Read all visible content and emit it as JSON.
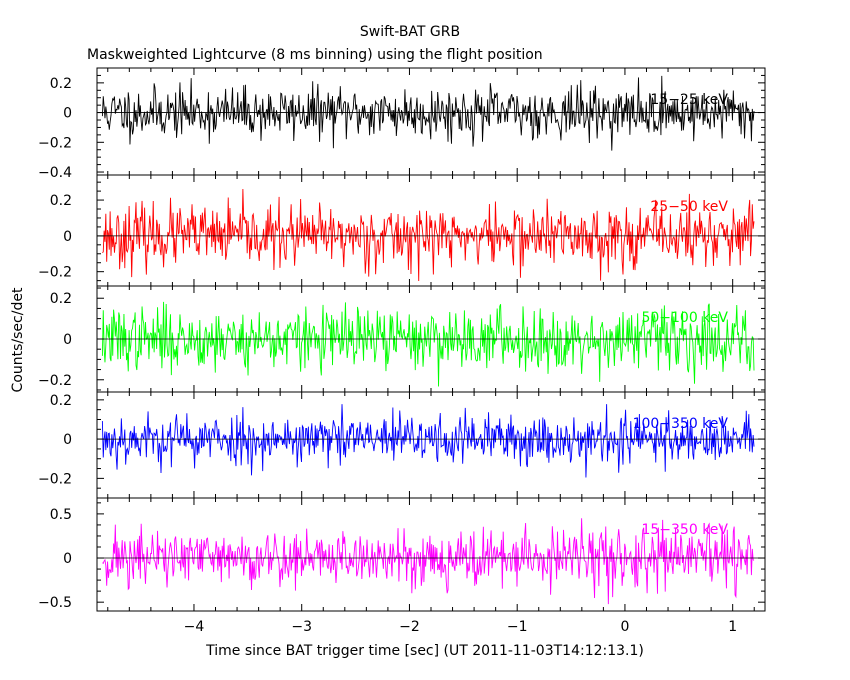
{
  "chart_data": {
    "type": "line",
    "title": "Swift-BAT GRB",
    "subtitle": "Maskweighted Lightcurve (8 ms binning) using the flight position",
    "xlabel": "Time since BAT trigger time [sec] (UT 2011-11-03T14:12:13.1)",
    "ylabel": "Counts/sec/det",
    "xlim": [
      -4.9,
      1.3
    ],
    "x_ticks": [
      {
        "value": -4,
        "label": "−4"
      },
      {
        "value": -3,
        "label": "−3"
      },
      {
        "value": -2,
        "label": "−2"
      },
      {
        "value": -1,
        "label": "−1"
      },
      {
        "value": 0,
        "label": "0"
      },
      {
        "value": 1,
        "label": "1"
      }
    ],
    "x_data_range": [
      -4.85,
      1.2
    ],
    "bin_width": 0.008,
    "panels": [
      {
        "name": "15-25 keV",
        "label": "15−25 keV",
        "color": "#000000",
        "ylim": [
          -0.42,
          0.3
        ],
        "y_ticks": [
          {
            "value": 0.2,
            "label": "0.2"
          },
          {
            "value": 0,
            "label": "0"
          },
          {
            "value": -0.2,
            "label": "−0.2"
          },
          {
            "value": -0.4,
            "label": "−0.4"
          }
        ],
        "noise_sigma": 0.085,
        "seed": 11
      },
      {
        "name": "25-50 keV",
        "label": "25−50 keV",
        "color": "#ff0000",
        "ylim": [
          -0.28,
          0.34
        ],
        "y_ticks": [
          {
            "value": 0.2,
            "label": "0.2"
          },
          {
            "value": 0,
            "label": "0"
          },
          {
            "value": -0.2,
            "label": "−0.2"
          }
        ],
        "noise_sigma": 0.085,
        "seed": 23
      },
      {
        "name": "50-100 keV",
        "label": "50−100 keV",
        "color": "#00ff00",
        "ylim": [
          -0.26,
          0.26
        ],
        "y_ticks": [
          {
            "value": 0.2,
            "label": "0.2"
          },
          {
            "value": 0,
            "label": "0"
          },
          {
            "value": -0.2,
            "label": "−0.2"
          }
        ],
        "noise_sigma": 0.075,
        "seed": 37
      },
      {
        "name": "100-350 keV",
        "label": "100−350 keV",
        "color": "#0000ff",
        "ylim": [
          -0.3,
          0.24
        ],
        "y_ticks": [
          {
            "value": 0.2,
            "label": "0.2"
          },
          {
            "value": 0,
            "label": "0"
          },
          {
            "value": -0.2,
            "label": "−0.2"
          }
        ],
        "noise_sigma": 0.065,
        "seed": 53
      },
      {
        "name": "15-350 keV",
        "label": "15−350 keV",
        "color": "#ff00ff",
        "ylim": [
          -0.6,
          0.68
        ],
        "y_ticks": [
          {
            "value": 0.5,
            "label": "0.5"
          },
          {
            "value": 0,
            "label": "0"
          },
          {
            "value": -0.5,
            "label": "−0.5"
          }
        ],
        "noise_sigma": 0.165,
        "seed": 71
      }
    ]
  }
}
